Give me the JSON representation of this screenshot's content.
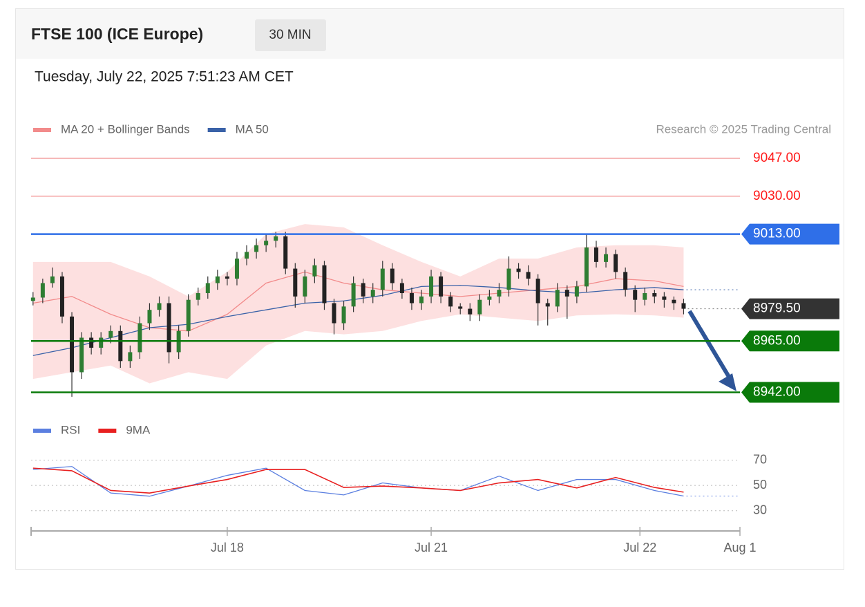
{
  "chart_data": {
    "type": "candlestick",
    "title": "FTSE 100 (ICE Europe)",
    "interval": "30 MIN",
    "subtitle": "Tuesday, July 22, 2025 7:51:23 AM CET",
    "credit": "Research © 2025 Trading Central",
    "up_color": "#2e7d32",
    "down_color": "#222222",
    "xlim": [
      -0.2,
      72.8
    ],
    "xticks": [
      {
        "value": 20,
        "label": "Jul 18"
      },
      {
        "value": 41,
        "label": "Jul 21"
      },
      {
        "value": 62.5,
        "label": "Jul 22"
      },
      {
        "value": 72.8,
        "label": "Aug 1"
      }
    ],
    "ylim": [
      8935,
      9056
    ],
    "candles": [
      [
        8983,
        8987,
        8981,
        8984.5
      ],
      [
        8984.5,
        8993,
        8982,
        8991
      ],
      [
        8991,
        8998,
        8989,
        8994
      ],
      [
        8994,
        8996,
        8973,
        8976
      ],
      [
        8976,
        8978,
        8940,
        8951
      ],
      [
        8951,
        8969,
        8948,
        8966.5
      ],
      [
        8966.5,
        8969,
        8959,
        8962
      ],
      [
        8962,
        8969,
        8959,
        8966.5
      ],
      [
        8966.5,
        8972,
        8964,
        8969.5
      ],
      [
        8969.5,
        8972,
        8953,
        8956
      ],
      [
        8956,
        8963,
        8953,
        8960
      ],
      [
        8960,
        8976,
        8957,
        8973
      ],
      [
        8973,
        8982,
        8970,
        8979
      ],
      [
        8979,
        8985,
        8976,
        8982
      ],
      [
        8982,
        8985,
        8955,
        8960
      ],
      [
        8960,
        8972,
        8957,
        8969.5
      ],
      [
        8969.5,
        8986,
        8967,
        8983.5
      ],
      [
        8983.5,
        8989,
        8981,
        8986.5
      ],
      [
        8986.5,
        8994,
        8984,
        8991
      ],
      [
        8991,
        8997,
        8988,
        8994
      ],
      [
        8994,
        8996,
        8990,
        8993
      ],
      [
        8993,
        9005,
        8990,
        9002
      ],
      [
        9002,
        9008,
        8999,
        9005
      ],
      [
        9005,
        9011,
        9002,
        9008
      ],
      [
        9008,
        9013,
        9005,
        9010
      ],
      [
        9010,
        9014,
        9007,
        9012
      ],
      [
        9012,
        9014,
        8995,
        8997.5
      ],
      [
        8997.5,
        9000,
        8980,
        8985
      ],
      [
        8985,
        8997,
        8982,
        8994
      ],
      [
        8994,
        9002,
        8991,
        8999
      ],
      [
        8999,
        9001,
        8979,
        8982
      ],
      [
        8982,
        8984,
        8968,
        8973
      ],
      [
        8973,
        8983,
        8970,
        8980.5
      ],
      [
        8980.5,
        8994,
        8978,
        8991
      ],
      [
        8991,
        8993,
        8982,
        8985
      ],
      [
        8985,
        8991,
        8982,
        8988
      ],
      [
        8988,
        9001,
        8985,
        8997.5
      ],
      [
        8997.5,
        9000,
        8988,
        8991
      ],
      [
        8991,
        8993,
        8984,
        8986.5
      ],
      [
        8986.5,
        8989,
        8979,
        8982
      ],
      [
        8982,
        8988,
        8979,
        8985
      ],
      [
        8985,
        8997,
        8982,
        8994
      ],
      [
        8994,
        8996,
        8982,
        8985
      ],
      [
        8985,
        8987,
        8978,
        8980.5
      ],
      [
        8980.5,
        8982,
        8977,
        8979.5
      ],
      [
        8979.5,
        8982,
        8974,
        8977
      ],
      [
        8977,
        8986,
        8974,
        8983.5
      ],
      [
        8983.5,
        8988,
        8981,
        8985
      ],
      [
        8985,
        8991,
        8982,
        8988
      ],
      [
        8988,
        9003,
        8985,
        8997.5
      ],
      [
        8997.5,
        9000,
        8993,
        8996
      ],
      [
        8996,
        8999,
        8990,
        8993
      ],
      [
        8993,
        8995,
        8972,
        8982
      ],
      [
        8982,
        8984,
        8972,
        8980.5
      ],
      [
        8980.5,
        8991,
        8978,
        8988
      ],
      [
        8988,
        8990,
        8975,
        8985
      ],
      [
        8985,
        8992,
        8982,
        8989.5
      ],
      [
        8989.5,
        9013,
        8987,
        9007
      ],
      [
        9007,
        9010,
        8998,
        9000.5
      ],
      [
        9000.5,
        9007,
        8998,
        9004
      ],
      [
        9004,
        9006,
        8993,
        8996
      ],
      [
        8996,
        8998,
        8985,
        8988
      ],
      [
        8988,
        8990,
        8978,
        8983.5
      ],
      [
        8983.5,
        8989,
        8981,
        8986.5
      ],
      [
        8986.5,
        8988,
        8982,
        8985
      ],
      [
        8985,
        8987,
        8980,
        8983.5
      ],
      [
        8983.5,
        8985,
        8979,
        8982
      ],
      [
        8982,
        8984,
        8977,
        8979.5
      ]
    ],
    "indicators": {
      "x": [
        0,
        4,
        8,
        12,
        16,
        20,
        24,
        28,
        32,
        36,
        40,
        44,
        48,
        52,
        56,
        60,
        64,
        67
      ],
      "ma20": {
        "name": "MA 20 + Bollinger Bands",
        "color": "#f28b8b",
        "band_color": "#fde0e0",
        "values": [
          8982,
          8985,
          8977,
          8971,
          8969.5,
          8977,
          8991,
          8996,
          8991,
          8988,
          8986.5,
          8985,
          8986.5,
          8988,
          8989.5,
          8993,
          8992,
          8989.5
        ],
        "upper": [
          9000.5,
          9000.5,
          9000.5,
          8994,
          8985,
          8996,
          9013,
          9017.5,
          9016,
          9008,
          9000.5,
          8994,
          9002,
          9002,
          9007,
          9008,
          9008,
          9007
        ],
        "lower": [
          8948,
          8951,
          8954,
          8946,
          8951,
          8948,
          8963,
          8969.5,
          8968,
          8969.5,
          8974,
          8977,
          8975.5,
          8974,
          8976.5,
          8977,
          8976.5,
          8975.5
        ]
      },
      "ma50": {
        "name": "MA 50",
        "color": "#3a62a8",
        "values": [
          8958.5,
          8962,
          8966.5,
          8971,
          8972.5,
          8976,
          8979,
          8982,
          8983,
          8985.5,
          8989.5,
          8990,
          8989,
          8987.5,
          8986.5,
          8988,
          8989,
          8988
        ]
      }
    },
    "levels": [
      {
        "value": 9047,
        "label": "9047.00",
        "color": "#f4a0a0",
        "text_color": "#ff1a1a",
        "kind": "line"
      },
      {
        "value": 9030,
        "label": "9030.00",
        "color": "#f4a0a0",
        "text_color": "#ff1a1a",
        "kind": "line"
      },
      {
        "value": 9013,
        "label": "9013.00",
        "color": "#2f6fe8",
        "text_color": "#ffffff",
        "kind": "tag-line"
      },
      {
        "value": 8979.5,
        "label": "8979.50",
        "color": "#333333",
        "text_color": "#ffffff",
        "kind": "tag"
      },
      {
        "value": 8965,
        "label": "8965.00",
        "color": "#0a7a0a",
        "text_color": "#ffffff",
        "kind": "tag-line"
      },
      {
        "value": 8942,
        "label": "8942.00",
        "color": "#0a7a0a",
        "text_color": "#ffffff",
        "kind": "tag-line"
      }
    ],
    "rsi": {
      "ylim": [
        20,
        78
      ],
      "yticks": [
        70,
        50,
        30
      ],
      "rsi": {
        "name": "RSI",
        "color": "#5b7fe0",
        "values": [
          62.6,
          65,
          44,
          41.5,
          49.5,
          58,
          63.7,
          46,
          42.5,
          52,
          48,
          46,
          57.4,
          46,
          54.7,
          54.7,
          46,
          41.6
        ]
      },
      "ma9": {
        "name": "9MA",
        "color": "#e82020",
        "values": [
          63.7,
          61.6,
          46,
          44,
          49.5,
          54.7,
          62.6,
          62.6,
          48.4,
          49.5,
          48,
          46,
          52,
          54.7,
          48,
          56.3,
          48.4,
          44.7
        ]
      }
    }
  }
}
